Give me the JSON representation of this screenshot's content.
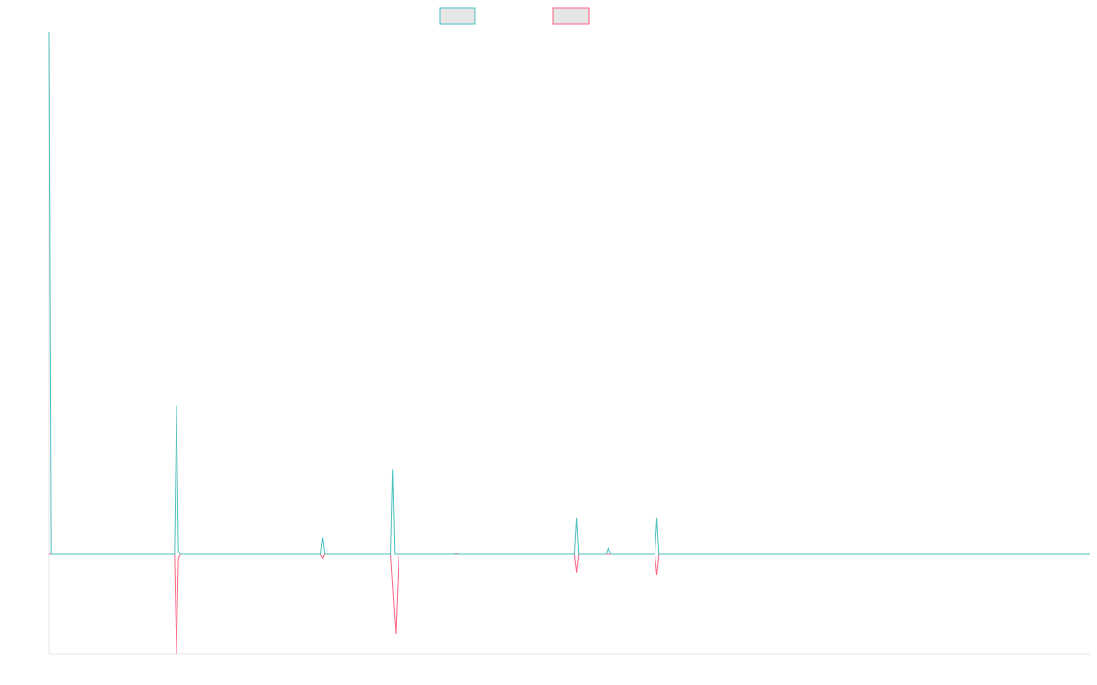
{
  "chart_data": {
    "type": "line",
    "title": "",
    "xlabel": "",
    "ylabel": "",
    "grid": false,
    "legend_position": "top-center",
    "ylim": [
      -100,
      525
    ],
    "xlim": [
      0,
      1048
    ],
    "colors": {
      "series_a": "#4bc0c0",
      "series_b": "#ff6384",
      "legend_fill": "#e6e6e6",
      "axis": "#e4e4e4"
    },
    "series": [
      {
        "color": "#4bc0c0",
        "points": [
          [
            0,
            525
          ],
          [
            2,
            0
          ],
          [
            75,
            0
          ],
          [
            126,
            0
          ],
          [
            128,
            150
          ],
          [
            130,
            4
          ],
          [
            132,
            0
          ],
          [
            273,
            0
          ],
          [
            275,
            17
          ],
          [
            277,
            0
          ],
          [
            340,
            0
          ],
          [
            344,
            0
          ],
          [
            346,
            85
          ],
          [
            348,
            0
          ],
          [
            408,
            0
          ],
          [
            410,
            1
          ],
          [
            412,
            0
          ],
          [
            529,
            0
          ],
          [
            531,
            37
          ],
          [
            533,
            0
          ],
          [
            561,
            0
          ],
          [
            563,
            6
          ],
          [
            565,
            0
          ],
          [
            610,
            0
          ],
          [
            612,
            37
          ],
          [
            614,
            0
          ],
          [
            1048,
            0
          ]
        ]
      },
      {
        "color": "#ff6384",
        "points": [
          [
            0,
            0
          ],
          [
            126,
            0
          ],
          [
            128,
            -100
          ],
          [
            130,
            -4
          ],
          [
            132,
            0
          ],
          [
            273,
            0
          ],
          [
            275,
            -4
          ],
          [
            277,
            0
          ],
          [
            344,
            0
          ],
          [
            349,
            -80
          ],
          [
            352,
            0
          ],
          [
            529,
            0
          ],
          [
            531,
            -18
          ],
          [
            533,
            0
          ],
          [
            610,
            0
          ],
          [
            612,
            -21
          ],
          [
            614,
            0
          ],
          [
            1048,
            0
          ]
        ]
      }
    ]
  }
}
